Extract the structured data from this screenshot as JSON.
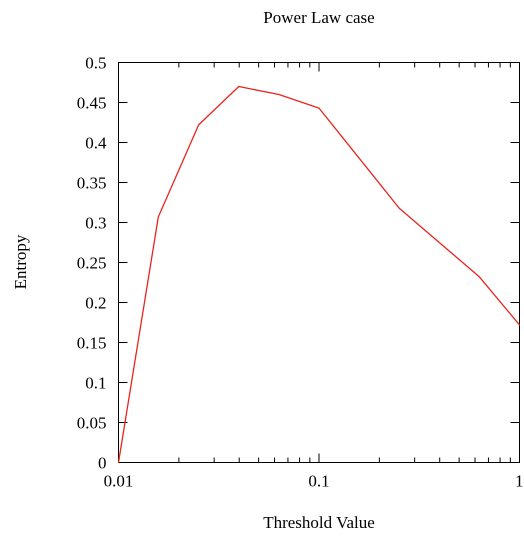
{
  "chart_data": {
    "type": "line",
    "title": "Power Law case",
    "xlabel": "Threshold Value",
    "ylabel": "Entropy",
    "xscale": "log",
    "xlim": [
      0.01,
      1
    ],
    "ylim": [
      0,
      0.5
    ],
    "x_ticks": [
      {
        "value": 0.01,
        "label": "0.01"
      },
      {
        "value": 0.1,
        "label": "0.1"
      },
      {
        "value": 1,
        "label": "1"
      }
    ],
    "y_ticks": [
      {
        "value": 0,
        "label": "0"
      },
      {
        "value": 0.05,
        "label": "0.05"
      },
      {
        "value": 0.1,
        "label": "0.1"
      },
      {
        "value": 0.15,
        "label": "0.15"
      },
      {
        "value": 0.2,
        "label": "0.2"
      },
      {
        "value": 0.25,
        "label": "0.25"
      },
      {
        "value": 0.3,
        "label": "0.3"
      },
      {
        "value": 0.35,
        "label": "0.35"
      },
      {
        "value": 0.4,
        "label": "0.4"
      },
      {
        "value": 0.45,
        "label": "0.45"
      },
      {
        "value": 0.5,
        "label": "0.5"
      }
    ],
    "grid": false,
    "legend": "none",
    "series": [
      {
        "color": "#e8251e",
        "points": [
          {
            "x": 0.01,
            "y": 0.0
          },
          {
            "x": 0.0158,
            "y": 0.307
          },
          {
            "x": 0.0251,
            "y": 0.422
          },
          {
            "x": 0.0398,
            "y": 0.47
          },
          {
            "x": 0.0631,
            "y": 0.46
          },
          {
            "x": 0.1,
            "y": 0.443
          },
          {
            "x": 0.251,
            "y": 0.318
          },
          {
            "x": 0.631,
            "y": 0.232
          },
          {
            "x": 1.0,
            "y": 0.172
          }
        ]
      }
    ]
  }
}
